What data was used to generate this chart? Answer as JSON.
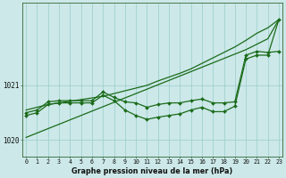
{
  "background_color": "#cce8e8",
  "grid_color": "#99cccc",
  "line_color": "#1a6b1a",
  "x_ticks": [
    0,
    1,
    2,
    3,
    4,
    5,
    6,
    7,
    8,
    9,
    10,
    11,
    12,
    13,
    14,
    15,
    16,
    17,
    18,
    19,
    20,
    21,
    22,
    23
  ],
  "ylim": [
    1019.7,
    1022.5
  ],
  "yticks": [
    1020,
    1021
  ],
  "xlabel_text": "Graphe pression niveau de la mer (hPa)",
  "smooth_low": [
    1020.05,
    1020.13,
    1020.21,
    1020.29,
    1020.37,
    1020.45,
    1020.53,
    1020.61,
    1020.69,
    1020.77,
    1020.85,
    1020.93,
    1021.01,
    1021.09,
    1021.17,
    1021.25,
    1021.33,
    1021.41,
    1021.49,
    1021.57,
    1021.65,
    1021.75,
    1021.85,
    1022.2
  ],
  "smooth_high": [
    1020.55,
    1020.6,
    1020.65,
    1020.68,
    1020.71,
    1020.74,
    1020.77,
    1020.8,
    1020.85,
    1020.9,
    1020.95,
    1021.0,
    1021.08,
    1021.15,
    1021.22,
    1021.3,
    1021.4,
    1021.5,
    1021.6,
    1021.7,
    1021.82,
    1021.95,
    1022.05,
    1022.2
  ],
  "line_markers1": [
    1020.5,
    1020.55,
    1020.7,
    1020.72,
    1020.72,
    1020.72,
    1020.72,
    1020.88,
    1020.78,
    1020.7,
    1020.68,
    1020.6,
    1020.65,
    1020.68,
    1020.68,
    1020.72,
    1020.75,
    1020.68,
    1020.68,
    1020.7,
    1021.55,
    1021.62,
    1021.6,
    1021.62
  ],
  "line_markers2": [
    1020.45,
    1020.5,
    1020.65,
    1020.68,
    1020.68,
    1020.68,
    1020.68,
    1020.82,
    1020.72,
    1020.55,
    1020.45,
    1020.38,
    1020.42,
    1020.45,
    1020.48,
    1020.55,
    1020.6,
    1020.52,
    1020.52,
    1020.62,
    1021.48,
    1021.55,
    1021.55,
    1022.2
  ]
}
